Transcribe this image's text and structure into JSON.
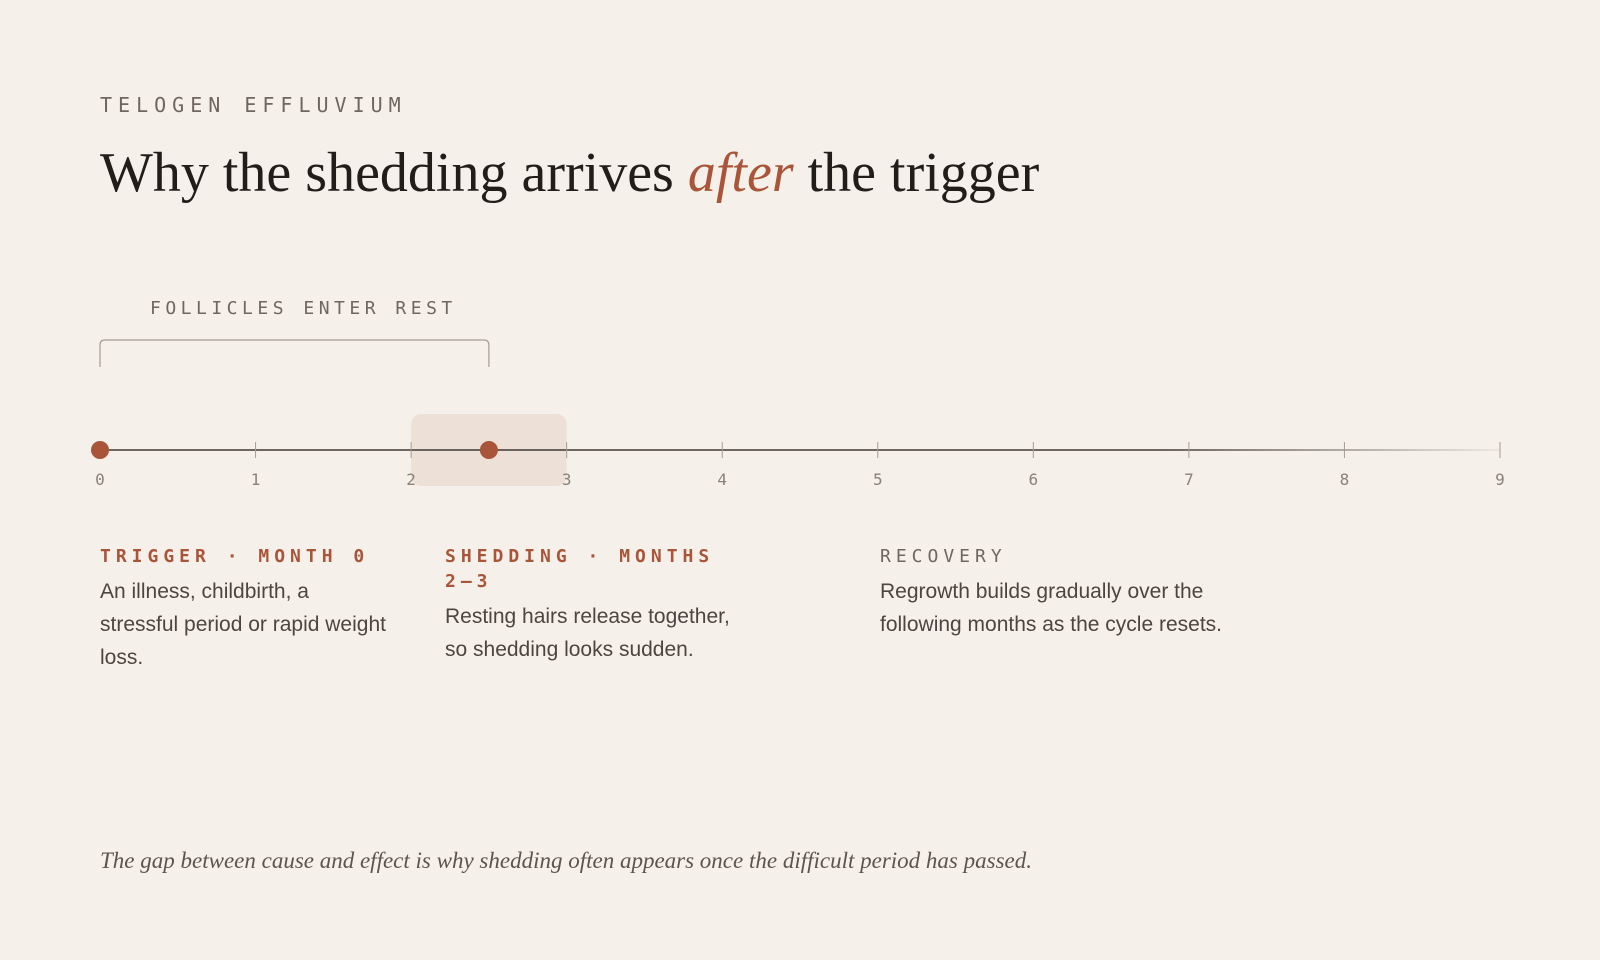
{
  "header": {
    "eyebrow": "TELOGEN EFFLUVIUM",
    "title_before": "Why the shedding arrives ",
    "title_accent": "after",
    "title_after": " the trigger"
  },
  "timeline": {
    "axis_ticks": [
      "0",
      "1",
      "2",
      "3",
      "4",
      "5",
      "6",
      "7",
      "8",
      "9"
    ],
    "bracket_label": "FOLLICLES ENTER REST",
    "bracket_range_months": [
      0,
      2.5
    ],
    "shedding_window_months": [
      2,
      3
    ],
    "trigger_marker_month": 0,
    "shedding_marker_month": 2.5
  },
  "phases": [
    {
      "label": "TRIGGER · MONTH 0",
      "body": "An illness, childbirth, a stressful period or rapid weight loss."
    },
    {
      "label": "SHEDDING · MONTHS 2–3",
      "body": "Resting hairs release together, so shedding looks sudden."
    },
    {
      "label": "RECOVERY",
      "body": "Regrowth builds gradually over the following months as the cycle resets."
    }
  ],
  "footnote": "The gap between cause and effect is why shedding often appears once the difficult period has passed.",
  "colors": {
    "background": "#f5f0e9",
    "accent": "#a9553a",
    "ink": "#231d1a",
    "muted": "#6f6660",
    "window": "#ede1d7",
    "tick_label": "#8a8179"
  }
}
